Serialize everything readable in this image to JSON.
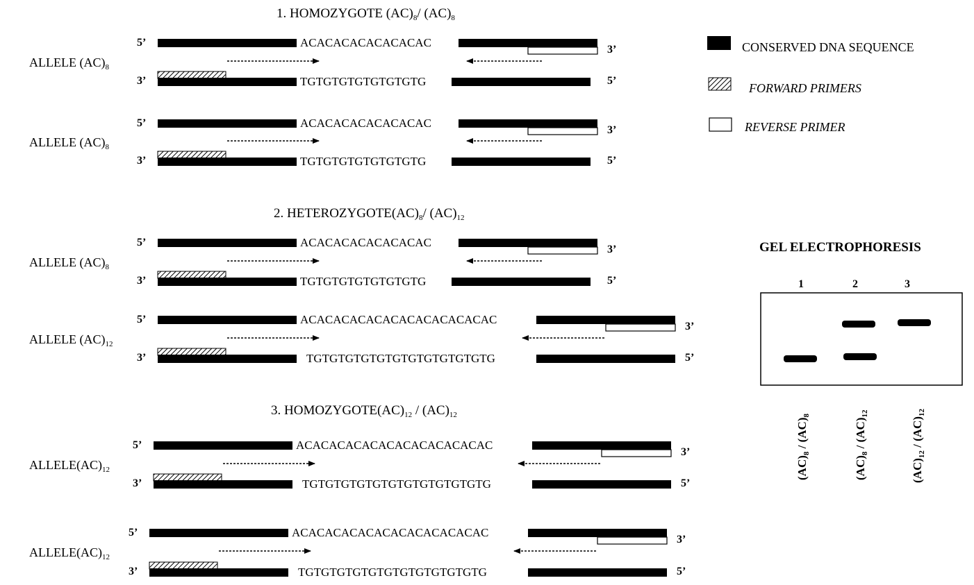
{
  "colors": {
    "conserved": "#000000",
    "background": "#ffffff"
  },
  "panels": [
    {
      "title": "1. HOMOZYGOTE (AC)",
      "title_sub1": "8",
      "title_mid": "/ (AC)",
      "title_sub2": "8",
      "alleles": [
        {
          "label": "ALLELE (AC)",
          "label_sub": "8",
          "top_seq": "ACACACACACACACAC",
          "bottom_seq": "TGTGTGTGTGTGTGTG",
          "end_tl": "5’",
          "end_tr": "3’",
          "end_bl": "3’",
          "end_br": "5’"
        },
        {
          "label": "ALLELE (AC)",
          "label_sub": "8",
          "top_seq": "ACACACACACACACAC",
          "bottom_seq": "TGTGTGTGTGTGTGTG",
          "end_tl": "5’",
          "end_tr": "3’",
          "end_bl": "3’",
          "end_br": "5’"
        }
      ]
    },
    {
      "title": "2. HETEROZYGOTE(AC)",
      "title_sub1": "8",
      "title_mid": "/ (AC)",
      "title_sub2": "12",
      "alleles": [
        {
          "label": "ALLELE (AC)",
          "label_sub": "8",
          "top_seq": "ACACACACACACACAC",
          "bottom_seq": "TGTGTGTGTGTGTGTG",
          "end_tl": "5’",
          "end_tr": "3’",
          "end_bl": "3’",
          "end_br": "5’"
        },
        {
          "label": "ALLELE (AC)",
          "label_sub": "12",
          "top_seq": "ACACACACACACACACACACACAC",
          "bottom_seq": "TGTGTGTGTGTGTGTGTGTGTGTG",
          "end_tl": "5’",
          "end_tr": "3’",
          "end_bl": "3’",
          "end_br": "5’"
        }
      ]
    },
    {
      "title": "3. HOMOZYGOTE(AC)",
      "title_sub1": "12",
      "title_mid": " / (AC)",
      "title_sub2": "12",
      "alleles": [
        {
          "label": "ALLELE(AC)",
          "label_sub": "12",
          "top_seq": "ACACACACACACACACACACACAC",
          "bottom_seq": "TGTGTGTGTGTGTGTGTGTGTGTG",
          "end_tl": "5’",
          "end_tr": "3’",
          "end_bl": "3’",
          "end_br": "5’"
        },
        {
          "label": "ALLELE(AC)",
          "label_sub": "12",
          "top_seq": "ACACACACACACACACACACACAC",
          "bottom_seq": "TGTGTGTGTGTGTGTGTGTGTGTG",
          "end_tl": "5’",
          "end_tr": "3’",
          "end_bl": "3’",
          "end_br": "5’"
        }
      ]
    }
  ],
  "legend": {
    "conserved": "CONSERVED DNA SEQUENCE",
    "forward": "FORWARD PRIMERS",
    "reverse": "REVERSE PRIMER"
  },
  "gel": {
    "title": "GEL ELECTROPHORESIS",
    "lanes": [
      {
        "number": "1",
        "label": "(AC)8 / (AC)8"
      },
      {
        "number": "2",
        "label": "(AC)8 / (AC)12"
      },
      {
        "number": "3",
        "label": "(AC)12 / (AC)12"
      }
    ]
  }
}
